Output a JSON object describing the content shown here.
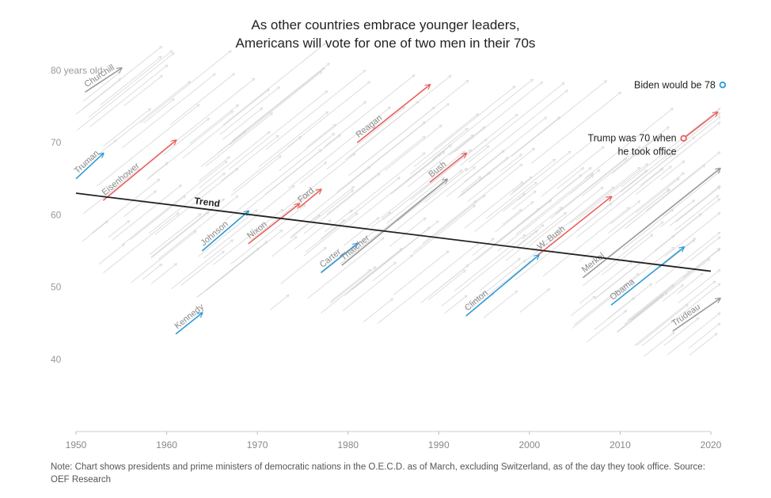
{
  "title_lines": [
    "As other countries embrace younger leaders,",
    "Americans will vote for one of two men in their 70s"
  ],
  "note": "Note: Chart shows presidents and prime ministers of democratic nations in the O.E.C.D. as of March, excluding Switzerland, as of the day they took office. Source: OEF Research",
  "colors": {
    "democrat": "#2e9bd6",
    "republican": "#e8605a",
    "other": "#999999",
    "background": "#d6d6d6",
    "trend": "#222222"
  },
  "chart_data": {
    "type": "line",
    "title": "As other countries embrace younger leaders, Americans will vote for one of two men in their 70s",
    "xlim": [
      1950,
      2020
    ],
    "ylim": [
      30,
      85
    ],
    "x_ticks": [
      1950,
      1960,
      1970,
      1980,
      1990,
      2000,
      2010,
      2020
    ],
    "y_ticks": [
      40,
      50,
      60,
      70,
      80
    ],
    "y_tick_labels": [
      "40",
      "50",
      "60",
      "70",
      "80 years old"
    ],
    "trend": {
      "name": "Trend",
      "start": [
        1950,
        63
      ],
      "end": [
        2020,
        52.2
      ]
    },
    "leaders": [
      {
        "name": "Churchill",
        "start_year": 1951,
        "start_age": 77,
        "end_year": 1955,
        "end_age": 80.3,
        "party": "other"
      },
      {
        "name": "Truman",
        "start_year": 1950,
        "start_age": 65,
        "end_year": 1953,
        "end_age": 68.5,
        "party": "democrat"
      },
      {
        "name": "Eisenhower",
        "start_year": 1953,
        "start_age": 62,
        "end_year": 1961,
        "end_age": 70.3,
        "party": "republican"
      },
      {
        "name": "Kennedy",
        "start_year": 1961,
        "start_age": 43.5,
        "end_year": 1963.9,
        "end_age": 46.4,
        "party": "democrat"
      },
      {
        "name": "Johnson",
        "start_year": 1963.9,
        "start_age": 55,
        "end_year": 1969,
        "end_age": 60.5,
        "party": "democrat"
      },
      {
        "name": "Nixon",
        "start_year": 1969,
        "start_age": 56,
        "end_year": 1974.6,
        "end_age": 61.5,
        "party": "republican"
      },
      {
        "name": "Ford",
        "start_year": 1974.6,
        "start_age": 61,
        "end_year": 1977,
        "end_age": 63.5,
        "party": "republican"
      },
      {
        "name": "Carter",
        "start_year": 1977,
        "start_age": 52,
        "end_year": 1981,
        "end_age": 56,
        "party": "democrat"
      },
      {
        "name": "Thatcher",
        "start_year": 1979.3,
        "start_age": 53,
        "end_year": 1990.9,
        "end_age": 64.9,
        "party": "other"
      },
      {
        "name": "Reagan",
        "start_year": 1981,
        "start_age": 70,
        "end_year": 1989,
        "end_age": 78,
        "party": "republican"
      },
      {
        "name": "Bush",
        "start_year": 1989,
        "start_age": 64.5,
        "end_year": 1993,
        "end_age": 68.5,
        "party": "republican"
      },
      {
        "name": "Clinton",
        "start_year": 1993,
        "start_age": 46,
        "end_year": 2001,
        "end_age": 54.4,
        "party": "democrat"
      },
      {
        "name": "W. Bush",
        "start_year": 2001,
        "start_age": 54.5,
        "end_year": 2009,
        "end_age": 62.5,
        "party": "republican"
      },
      {
        "name": "Merkel",
        "start_year": 2005.9,
        "start_age": 51.3,
        "end_year": 2021,
        "end_age": 66.4,
        "party": "other"
      },
      {
        "name": "Obama",
        "start_year": 2009,
        "start_age": 47.5,
        "end_year": 2017,
        "end_age": 55.5,
        "party": "democrat"
      },
      {
        "name": "Trudeau",
        "start_year": 2015.8,
        "start_age": 43.9,
        "end_year": 2021,
        "end_age": 48.4,
        "party": "other"
      },
      {
        "name": "Trump",
        "start_year": 2017,
        "start_age": 70.6,
        "end_year": 2020.7,
        "end_age": 74.2,
        "party": "republican"
      }
    ],
    "annotations": [
      {
        "text": "Biden would be 78",
        "year": 2021.3,
        "age": 78,
        "marker": "open-circle",
        "color": "democrat"
      },
      {
        "text_lines": [
          "Trump was 70 when",
          "he took office"
        ],
        "year": 2017,
        "age": 70.6,
        "marker": "open-circle",
        "color": "republican"
      }
    ]
  }
}
